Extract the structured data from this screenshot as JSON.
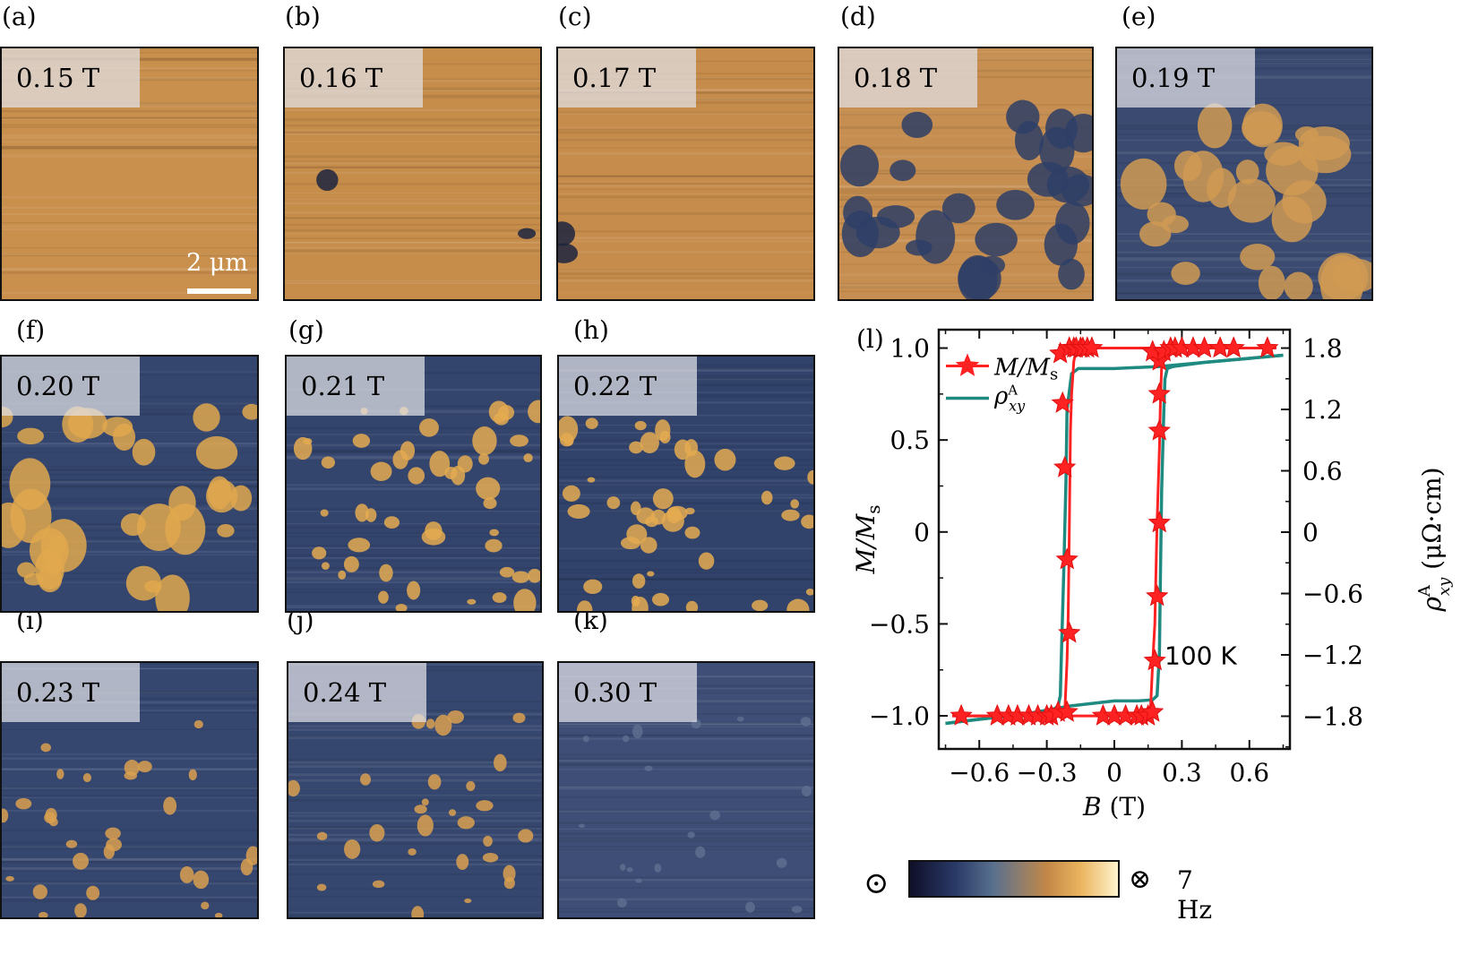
{
  "panels": [
    {
      "label": "(a)",
      "field": "0.15 T"
    },
    {
      "label": "(b)",
      "field": "0.16 T"
    },
    {
      "label": "(c)",
      "field": "0.17 T"
    },
    {
      "label": "(d)",
      "field": "0.18 T"
    },
    {
      "label": "(e)",
      "field": "0.19 T"
    },
    {
      "label": "(f)",
      "field": "0.20 T"
    },
    {
      "label": "(g)",
      "field": "0.21 T"
    },
    {
      "label": "(h)",
      "field": "0.22 T"
    },
    {
      "label": "(i)",
      "field": "0.23 T"
    },
    {
      "label": "(j)",
      "field": "0.24 T"
    },
    {
      "label": "(k)",
      "field": "0.30 T"
    }
  ],
  "scale_bar": {
    "label": "2 μm"
  },
  "colorbar": {
    "left_symbol": "⊙",
    "right_symbol": "⊗",
    "label": "7 Hz"
  },
  "colors": {
    "orange": "#c88e48",
    "navy": "#2c3a64",
    "red": "#ff2222",
    "teal": "#1f8a80"
  },
  "chart_data": {
    "type": "line",
    "panel_label": "(l)",
    "annotation": "100 K",
    "xlabel_var": "B",
    "xlabel_unit": "(T)",
    "xlim": [
      -0.78,
      0.78
    ],
    "xticks": [
      -0.6,
      -0.3,
      0,
      0.3,
      0.6
    ],
    "xtick_labels": [
      "−0.6",
      "−0.3",
      "0",
      "0.3",
      "0.6"
    ],
    "ylabel_left": "M/Ms",
    "ylim_left": [
      -1.18,
      1.1
    ],
    "yticks_left": [
      -1.0,
      -0.5,
      0,
      0.5,
      1.0
    ],
    "ytick_labels_left": [
      "−1.0",
      "−0.5",
      "0",
      "0.5",
      "1.0"
    ],
    "ylabel_right": "ρAxy (μΩ·cm)",
    "ylabel_right_unit": "(μΩ·cm)",
    "ylim_right": [
      -2.12,
      1.98
    ],
    "yticks_right": [
      -1.8,
      -1.2,
      -0.6,
      0,
      0.6,
      1.2,
      1.8
    ],
    "ytick_labels_right": [
      "−1.8",
      "−1.2",
      "−0.6",
      "0",
      "0.6",
      "1.2",
      "1.8"
    ],
    "legend": [
      "M/Ms",
      "ρAxy"
    ],
    "series": [
      {
        "name": "M/Ms",
        "axis": "left",
        "color": "#ff2222",
        "marker": "star",
        "branch_down": {
          "x": [
            0.72,
            0.6,
            0.4,
            0.3,
            0.2,
            -0.1,
            -0.15,
            -0.17,
            -0.18,
            -0.19,
            -0.195,
            -0.2,
            -0.205,
            -0.21,
            -0.22,
            -0.28,
            -0.4,
            -0.5,
            -0.72
          ],
          "y": [
            1.0,
            1.0,
            1.0,
            1.0,
            1.0,
            1.0,
            1.0,
            0.98,
            0.93,
            0.75,
            0.55,
            0.0,
            -0.45,
            -0.7,
            -0.98,
            -1.0,
            -1.0,
            -1.0,
            -1.0
          ]
        },
        "branch_up": {
          "x": [
            -0.72,
            -0.6,
            -0.4,
            -0.3,
            -0.2,
            0.1,
            0.15,
            0.16,
            0.17,
            0.18,
            0.19,
            0.2,
            0.205,
            0.21,
            0.22,
            0.3,
            0.4,
            0.5,
            0.72
          ],
          "y": [
            -1.0,
            -1.0,
            -1.0,
            -1.0,
            -1.0,
            -1.0,
            -1.0,
            -0.98,
            -0.72,
            -0.5,
            0.05,
            0.45,
            0.72,
            0.9,
            0.98,
            1.0,
            1.0,
            1.0,
            1.0
          ]
        },
        "star_points": {
          "x": [
            -0.68,
            -0.52,
            -0.47,
            -0.43,
            -0.38,
            -0.34,
            -0.3,
            -0.28,
            -0.25,
            -0.21,
            -0.2,
            -0.21,
            -0.22,
            -0.23,
            -0.24,
            -0.2,
            -0.18,
            -0.17,
            -0.15,
            -0.14,
            -0.12,
            -0.1,
            -0.05,
            0.0,
            0.05,
            0.1,
            0.12,
            0.15,
            0.17,
            0.18,
            0.19,
            0.2,
            0.2,
            0.2,
            0.2,
            0.17,
            0.22,
            0.25,
            0.27,
            0.3,
            0.35,
            0.4,
            0.47,
            0.53,
            0.68
          ],
          "y": [
            -1.0,
            -1.0,
            -1.0,
            -1.0,
            -1.0,
            -1.0,
            -1.0,
            -1.0,
            -0.98,
            -0.98,
            -0.55,
            -0.15,
            0.35,
            0.7,
            0.97,
            1.0,
            1.0,
            1.0,
            1.0,
            1.0,
            1.0,
            1.0,
            -1.0,
            -1.0,
            -1.0,
            -1.0,
            -1.0,
            -1.0,
            -0.98,
            -0.7,
            -0.35,
            0.05,
            0.55,
            0.75,
            0.93,
            0.98,
            0.98,
            1.0,
            1.0,
            1.0,
            1.0,
            1.0,
            1.0,
            1.0,
            1.0
          ]
        }
      },
      {
        "name": "ρAxy",
        "axis": "right",
        "color": "#1f8a80",
        "branch_down": {
          "x": [
            0.75,
            0.6,
            0.4,
            0.2,
            0.0,
            -0.1,
            -0.16,
            -0.19,
            -0.21,
            -0.215,
            -0.225,
            -0.235,
            -0.24,
            -0.25,
            -0.28,
            -0.4,
            -0.6,
            -0.75
          ],
          "y": [
            1.73,
            1.7,
            1.66,
            1.62,
            1.6,
            1.6,
            1.6,
            1.55,
            1.2,
            0.5,
            -0.4,
            -1.2,
            -1.6,
            -1.7,
            -1.75,
            -1.78,
            -1.83,
            -1.87
          ]
        },
        "branch_up": {
          "x": [
            -0.75,
            -0.6,
            -0.4,
            -0.2,
            0.0,
            0.1,
            0.17,
            0.19,
            0.2,
            0.205,
            0.21,
            0.22,
            0.225,
            0.235,
            0.26,
            0.4,
            0.6,
            0.75
          ],
          "y": [
            -1.87,
            -1.83,
            -1.78,
            -1.7,
            -1.65,
            -1.65,
            -1.64,
            -1.6,
            -1.2,
            -0.4,
            0.4,
            1.2,
            1.5,
            1.6,
            1.62,
            1.66,
            1.7,
            1.73
          ]
        }
      }
    ]
  }
}
